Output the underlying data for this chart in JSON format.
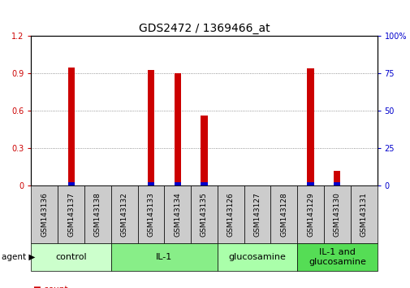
{
  "title": "GDS2472 / 1369466_at",
  "samples": [
    "GSM143136",
    "GSM143137",
    "GSM143138",
    "GSM143132",
    "GSM143133",
    "GSM143134",
    "GSM143135",
    "GSM143126",
    "GSM143127",
    "GSM143128",
    "GSM143129",
    "GSM143130",
    "GSM143131"
  ],
  "count_values": [
    0,
    0.95,
    0,
    0,
    0.93,
    0.9,
    0.56,
    0,
    0,
    0,
    0.94,
    0.12,
    0
  ],
  "percentile_values": [
    0,
    2.5,
    0,
    0,
    2.5,
    2.5,
    2.5,
    0,
    0,
    0,
    2.5,
    2.5,
    0
  ],
  "groups": [
    {
      "label": "control",
      "start": 0,
      "end": 3,
      "color": "#ccffcc"
    },
    {
      "label": "IL-1",
      "start": 3,
      "end": 7,
      "color": "#88ee88"
    },
    {
      "label": "glucosamine",
      "start": 7,
      "end": 10,
      "color": "#aaffaa"
    },
    {
      "label": "IL-1 and\nglucosamine",
      "start": 10,
      "end": 13,
      "color": "#55dd55"
    }
  ],
  "ylim_left": [
    0,
    1.2
  ],
  "ylim_right": [
    0,
    100
  ],
  "yticks_left": [
    0,
    0.3,
    0.6,
    0.9,
    1.2
  ],
  "yticks_right": [
    0,
    25,
    50,
    75,
    100
  ],
  "count_color": "#cc0000",
  "percentile_color": "#0000cc",
  "bg_color": "#ffffff",
  "grid_color": "#777777",
  "sample_bg": "#cccccc",
  "title_fontsize": 10,
  "tick_fontsize": 7,
  "label_fontsize": 6.5,
  "legend_fontsize": 7.5,
  "group_label_fontsize": 8
}
